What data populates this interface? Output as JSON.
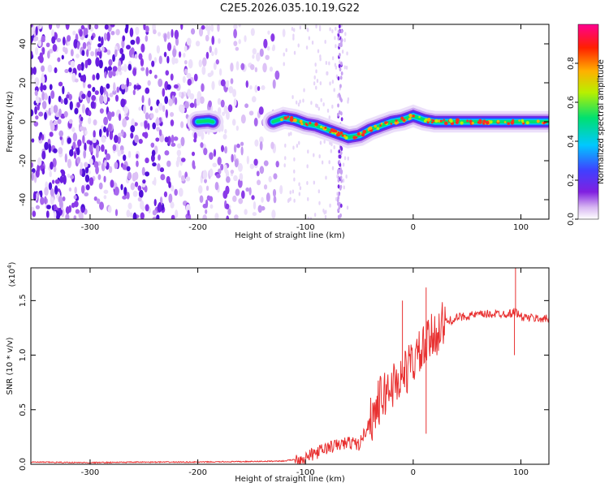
{
  "chart_data": [
    {
      "type": "heatmap",
      "title": "C2E5.2026.035.10.19.G22",
      "xlabel": "Height of straight line (km)",
      "ylabel": "Frequency (Hz)",
      "xlim": [
        -355,
        126
      ],
      "ylim": [
        -50,
        50
      ],
      "xticks": [
        -300,
        -200,
        -100,
        0,
        100
      ],
      "xtick_labels": [
        "-300",
        "-200",
        "-100",
        "0",
        "100"
      ],
      "yticks": [
        40,
        20,
        0,
        -20,
        -40
      ],
      "ytick_labels": [
        "40",
        "20",
        "0",
        "-20",
        "-40"
      ],
      "colorbar": {
        "label": "Normalized spectral amplitude",
        "range": [
          0,
          1
        ],
        "ticks": [
          0.0,
          0.2,
          0.4,
          0.6,
          0.8
        ],
        "tick_labels": [
          "0.0",
          "0.2",
          "0.4",
          "0.6",
          "0.8"
        ],
        "colormap": [
          "#ffffff",
          "#d8b8f2",
          "#8020e0",
          "#4040ff",
          "#00c8ff",
          "#00e070",
          "#b8f000",
          "#ffb000",
          "#ff2000",
          "#ff0090"
        ]
      },
      "noise_region_x": [
        -355,
        -120
      ],
      "signal_ridge": {
        "x": [
          -200,
          -190,
          -180,
          -130,
          -120,
          -110,
          -100,
          -90,
          -80,
          -70,
          -65,
          -60,
          -50,
          -40,
          -30,
          -20,
          -10,
          0,
          10,
          20,
          60,
          90,
          126
        ],
        "frequency": [
          0,
          0.5,
          -1,
          0,
          2,
          1,
          -1,
          -2,
          -4,
          -6,
          -7,
          -8,
          -7,
          -4,
          -2,
          0,
          1,
          3,
          1,
          0,
          0,
          0,
          0
        ]
      },
      "interference_spike_x": -68
    },
    {
      "type": "line",
      "xlabel": "Height of straight line (km)",
      "ylabel": "SNR (10 * v/v)",
      "y_multiplier": "(x10",
      "y_multiplier_exp": "4",
      "y_multiplier_close": ")",
      "xlim": [
        -355,
        126
      ],
      "ylim": [
        0,
        1.8
      ],
      "xticks": [
        -300,
        -200,
        -100,
        0,
        100
      ],
      "xtick_labels": [
        "-300",
        "-200",
        "-100",
        "0",
        "100"
      ],
      "yticks": [
        0.0,
        0.5,
        1.0,
        1.5
      ],
      "ytick_labels": [
        "0.0",
        "0.5",
        "1.0",
        "1.5"
      ],
      "line_color": "#e83030",
      "series": [
        {
          "name": "SNR",
          "x": [
            -355,
            -300,
            -250,
            -200,
            -150,
            -120,
            -100,
            -80,
            -60,
            -50,
            -40,
            -30,
            -20,
            -10,
            0,
            10,
            20,
            30,
            40,
            50,
            60,
            80,
            90,
            95,
            100,
            110,
            126
          ],
          "y": [
            0.02,
            0.015,
            0.02,
            0.02,
            0.025,
            0.03,
            0.06,
            0.15,
            0.2,
            0.18,
            0.4,
            0.6,
            0.72,
            0.8,
            0.95,
            1.05,
            1.2,
            1.3,
            1.34,
            1.36,
            1.37,
            1.38,
            1.38,
            1.4,
            1.35,
            1.34,
            1.33
          ]
        }
      ],
      "spikes": [
        {
          "x": -10,
          "y": 1.5
        },
        {
          "x": 12,
          "y": 1.62
        },
        {
          "x": 12,
          "y": 0.28
        },
        {
          "x": 95,
          "y": 1.8
        },
        {
          "x": 94,
          "y": 1.0
        }
      ]
    }
  ]
}
